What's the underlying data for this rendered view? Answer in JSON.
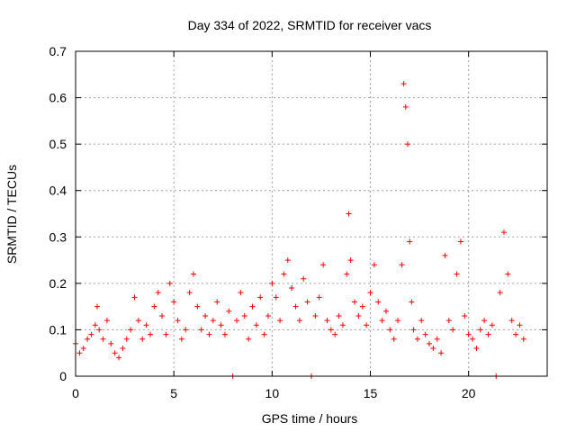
{
  "chart_data": {
    "type": "scatter",
    "title": "Day 334 of 2022, SRMTID for receiver vacs",
    "xlabel": "GPS time / hours",
    "ylabel": "SRMTID / TECUs",
    "xlim": [
      0,
      24
    ],
    "ylim": [
      0,
      0.7
    ],
    "xticks": [
      0,
      5,
      10,
      15,
      20
    ],
    "yticks": [
      0,
      0.1,
      0.2,
      0.3,
      0.4,
      0.5,
      0.6,
      0.7
    ],
    "grid": true,
    "marker": "+",
    "color": "#ff0000",
    "x_data_end": 22.8,
    "series": [
      {
        "name": "SRMTID",
        "points": [
          [
            0.0,
            0.07
          ],
          [
            0.2,
            0.05
          ],
          [
            0.4,
            0.06
          ],
          [
            0.6,
            0.08
          ],
          [
            0.8,
            0.09
          ],
          [
            1.0,
            0.11
          ],
          [
            1.1,
            0.15
          ],
          [
            1.2,
            0.1
          ],
          [
            1.4,
            0.08
          ],
          [
            1.6,
            0.12
          ],
          [
            1.8,
            0.07
          ],
          [
            2.0,
            0.05
          ],
          [
            2.2,
            0.04
          ],
          [
            2.4,
            0.06
          ],
          [
            2.6,
            0.08
          ],
          [
            2.8,
            0.1
          ],
          [
            3.0,
            0.17
          ],
          [
            3.2,
            0.12
          ],
          [
            3.4,
            0.08
          ],
          [
            3.6,
            0.11
          ],
          [
            3.8,
            0.09
          ],
          [
            4.0,
            0.15
          ],
          [
            4.2,
            0.18
          ],
          [
            4.4,
            0.13
          ],
          [
            4.6,
            0.09
          ],
          [
            4.8,
            0.2
          ],
          [
            5.0,
            0.16
          ],
          [
            5.2,
            0.12
          ],
          [
            5.4,
            0.08
          ],
          [
            5.6,
            0.1
          ],
          [
            5.8,
            0.18
          ],
          [
            6.0,
            0.22
          ],
          [
            6.2,
            0.15
          ],
          [
            6.4,
            0.1
          ],
          [
            6.6,
            0.13
          ],
          [
            6.8,
            0.09
          ],
          [
            7.0,
            0.12
          ],
          [
            7.2,
            0.16
          ],
          [
            7.4,
            0.11
          ],
          [
            7.6,
            0.09
          ],
          [
            7.8,
            0.14
          ],
          [
            8.0,
            0.0
          ],
          [
            8.2,
            0.12
          ],
          [
            8.4,
            0.18
          ],
          [
            8.6,
            0.13
          ],
          [
            8.8,
            0.08
          ],
          [
            9.0,
            0.15
          ],
          [
            9.2,
            0.11
          ],
          [
            9.4,
            0.17
          ],
          [
            9.6,
            0.09
          ],
          [
            9.8,
            0.13
          ],
          [
            10.0,
            0.2
          ],
          [
            10.2,
            0.17
          ],
          [
            10.4,
            0.12
          ],
          [
            10.6,
            0.22
          ],
          [
            10.8,
            0.25
          ],
          [
            11.0,
            0.19
          ],
          [
            11.2,
            0.15
          ],
          [
            11.4,
            0.12
          ],
          [
            11.6,
            0.21
          ],
          [
            11.8,
            0.16
          ],
          [
            12.0,
            0.0
          ],
          [
            12.2,
            0.13
          ],
          [
            12.4,
            0.17
          ],
          [
            12.6,
            0.24
          ],
          [
            12.8,
            0.12
          ],
          [
            13.0,
            0.1
          ],
          [
            13.2,
            0.09
          ],
          [
            13.4,
            0.13
          ],
          [
            13.6,
            0.11
          ],
          [
            13.8,
            0.22
          ],
          [
            13.9,
            0.35
          ],
          [
            14.0,
            0.25
          ],
          [
            14.2,
            0.16
          ],
          [
            14.4,
            0.13
          ],
          [
            14.6,
            0.15
          ],
          [
            14.8,
            0.11
          ],
          [
            15.0,
            0.18
          ],
          [
            15.2,
            0.24
          ],
          [
            15.4,
            0.16
          ],
          [
            15.6,
            0.12
          ],
          [
            15.8,
            0.14
          ],
          [
            16.0,
            0.1
          ],
          [
            16.2,
            0.08
          ],
          [
            16.4,
            0.12
          ],
          [
            16.6,
            0.24
          ],
          [
            16.7,
            0.63
          ],
          [
            16.8,
            0.58
          ],
          [
            16.9,
            0.5
          ],
          [
            17.0,
            0.29
          ],
          [
            17.1,
            0.16
          ],
          [
            17.2,
            0.1
          ],
          [
            17.4,
            0.08
          ],
          [
            17.6,
            0.12
          ],
          [
            17.8,
            0.09
          ],
          [
            18.0,
            0.07
          ],
          [
            18.2,
            0.06
          ],
          [
            18.4,
            0.08
          ],
          [
            18.6,
            0.05
          ],
          [
            18.8,
            0.26
          ],
          [
            19.0,
            0.12
          ],
          [
            19.2,
            0.1
          ],
          [
            19.4,
            0.22
          ],
          [
            19.6,
            0.29
          ],
          [
            19.8,
            0.13
          ],
          [
            20.0,
            0.09
          ],
          [
            20.2,
            0.08
          ],
          [
            20.4,
            0.06
          ],
          [
            20.6,
            0.1
          ],
          [
            20.8,
            0.12
          ],
          [
            21.0,
            0.09
          ],
          [
            21.2,
            0.11
          ],
          [
            21.4,
            0.0
          ],
          [
            21.6,
            0.18
          ],
          [
            21.8,
            0.31
          ],
          [
            22.0,
            0.22
          ],
          [
            22.2,
            0.12
          ],
          [
            22.4,
            0.09
          ],
          [
            22.6,
            0.11
          ],
          [
            22.8,
            0.08
          ]
        ]
      }
    ]
  }
}
